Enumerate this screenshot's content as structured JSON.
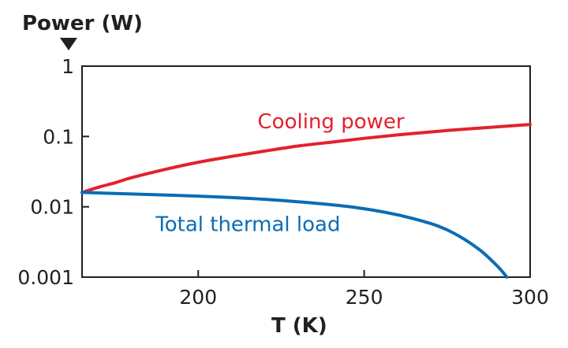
{
  "chart_data": {
    "type": "line",
    "y_scale": "log",
    "ylabel": "Power (W)",
    "xlabel": "T (K)",
    "xlim": [
      165,
      300
    ],
    "ylim": [
      0.001,
      1
    ],
    "x_ticks": [
      {
        "value": 200,
        "label": "200"
      },
      {
        "value": 250,
        "label": "250"
      },
      {
        "value": 300,
        "label": "300"
      }
    ],
    "y_ticks": [
      {
        "value": 1,
        "label": "1"
      },
      {
        "value": 0.1,
        "label": "0.1"
      },
      {
        "value": 0.01,
        "label": "0.01"
      },
      {
        "value": 0.001,
        "label": "0.001"
      }
    ],
    "grid": false,
    "series": [
      {
        "name": "Cooling power",
        "color": "#e4202e",
        "label_anchor": {
          "x": 240,
          "y": 0.13
        },
        "points": [
          {
            "x": 165,
            "y": 0.016
          },
          {
            "x": 170,
            "y": 0.019
          },
          {
            "x": 175,
            "y": 0.022
          },
          {
            "x": 180,
            "y": 0.026
          },
          {
            "x": 190,
            "y": 0.034
          },
          {
            "x": 200,
            "y": 0.043
          },
          {
            "x": 210,
            "y": 0.052
          },
          {
            "x": 220,
            "y": 0.062
          },
          {
            "x": 230,
            "y": 0.073
          },
          {
            "x": 240,
            "y": 0.083
          },
          {
            "x": 250,
            "y": 0.094
          },
          {
            "x": 260,
            "y": 0.105
          },
          {
            "x": 270,
            "y": 0.116
          },
          {
            "x": 280,
            "y": 0.127
          },
          {
            "x": 290,
            "y": 0.137
          },
          {
            "x": 300,
            "y": 0.148
          }
        ]
      },
      {
        "name": "Total thermal load",
        "color": "#0a6cb5",
        "label_anchor": {
          "x": 215,
          "y": 0.0045
        },
        "points": [
          {
            "x": 165,
            "y": 0.016
          },
          {
            "x": 180,
            "y": 0.0152
          },
          {
            "x": 200,
            "y": 0.0142
          },
          {
            "x": 220,
            "y": 0.0128
          },
          {
            "x": 240,
            "y": 0.0107
          },
          {
            "x": 250,
            "y": 0.0094
          },
          {
            "x": 260,
            "y": 0.0077
          },
          {
            "x": 270,
            "y": 0.0058
          },
          {
            "x": 275,
            "y": 0.0047
          },
          {
            "x": 280,
            "y": 0.0035
          },
          {
            "x": 285,
            "y": 0.0024
          },
          {
            "x": 288,
            "y": 0.0018
          },
          {
            "x": 291,
            "y": 0.0013
          },
          {
            "x": 293,
            "y": 0.001
          }
        ]
      }
    ]
  }
}
